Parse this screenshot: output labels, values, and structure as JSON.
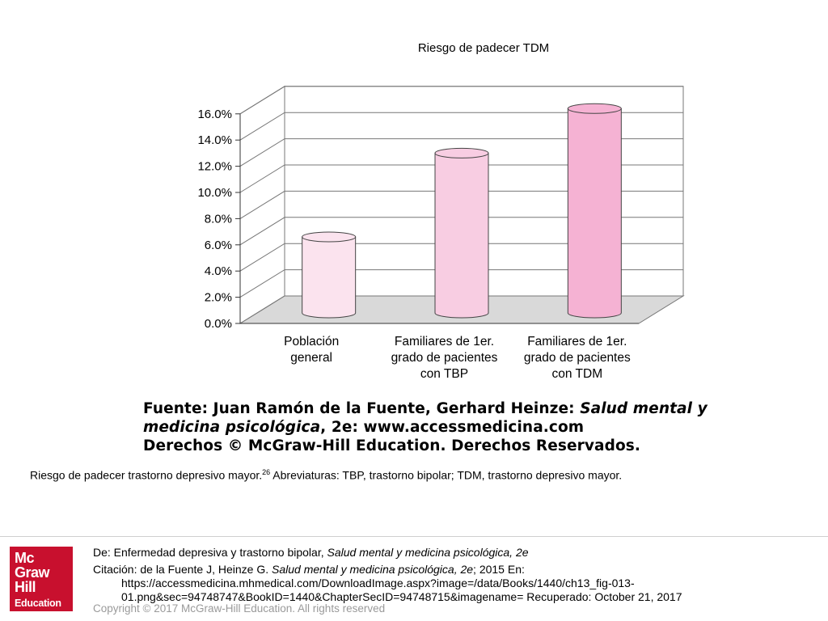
{
  "chart_data": {
    "type": "bar",
    "title": "Riesgo de padecer TDM",
    "categories": [
      [
        "Población",
        "general"
      ],
      [
        "Familiares de 1er.",
        "grado de pacientes",
        "con TBP"
      ],
      [
        "Familiares de 1er.",
        "grado de pacientes",
        "con TDM"
      ]
    ],
    "values": [
      5.8,
      12.2,
      15.6
    ],
    "y_ticks": [
      "0.0%",
      "2.0%",
      "4.0%",
      "6.0%",
      "8.0%",
      "10.0%",
      "12.0%",
      "14.0%",
      "16.0%"
    ],
    "ylim": [
      0,
      16
    ],
    "grid": true,
    "bar_style": "3d-cylinder",
    "colors": {
      "bars": [
        "#fbe3ee",
        "#f8cde2",
        "#f5b2d3"
      ],
      "bar_stroke": "#444444",
      "floor": "#d9d9d9",
      "grid": "#777777"
    }
  },
  "figure": {
    "source_line1_plain": "Fuente: Juan Ramón de la Fuente, Gerhard Heinze: ",
    "source_line1_italic": "Salud mental y",
    "source_line2_italic": "medicina psicológica",
    "source_line2_plain": ", 2e: www.accessmedicina.com",
    "source_line3": "Derechos © McGraw-Hill Education. Derechos Reservados."
  },
  "caption": {
    "before": "Riesgo de padecer trastorno depresivo mayor.",
    "sup": "26",
    "after": " Abreviaturas: TBP, trastorno bipolar; TDM, trastorno depresivo mayor."
  },
  "footer": {
    "logo_words": [
      "Mc",
      "Graw",
      "Hill"
    ],
    "logo_edu": "Education",
    "from_plain": "De: Enfermedad depresiva y trastorno bipolar, ",
    "from_italic": "Salud mental y medicina psicológica, 2e",
    "citation_prefix": "Citación: de la Fuente J, Heinze G",
    "citation_dot": ". ",
    "citation_italic": "Salud mental y medicina psicológica, 2e",
    "citation_suffix": "; 2015 En:",
    "citation_url1": "https://accessmedicina.mhmedical.com/DownloadImage.aspx?image=/data/Books/1440/ch13_fig-013-",
    "citation_url2": "01.png&sec=94748747&BookID=1440&ChapterSecID=94748715&imagename= Recuperado: October 21, 2017",
    "copyright": "Copyright © 2017 McGraw-Hill Education. All rights reserved"
  }
}
